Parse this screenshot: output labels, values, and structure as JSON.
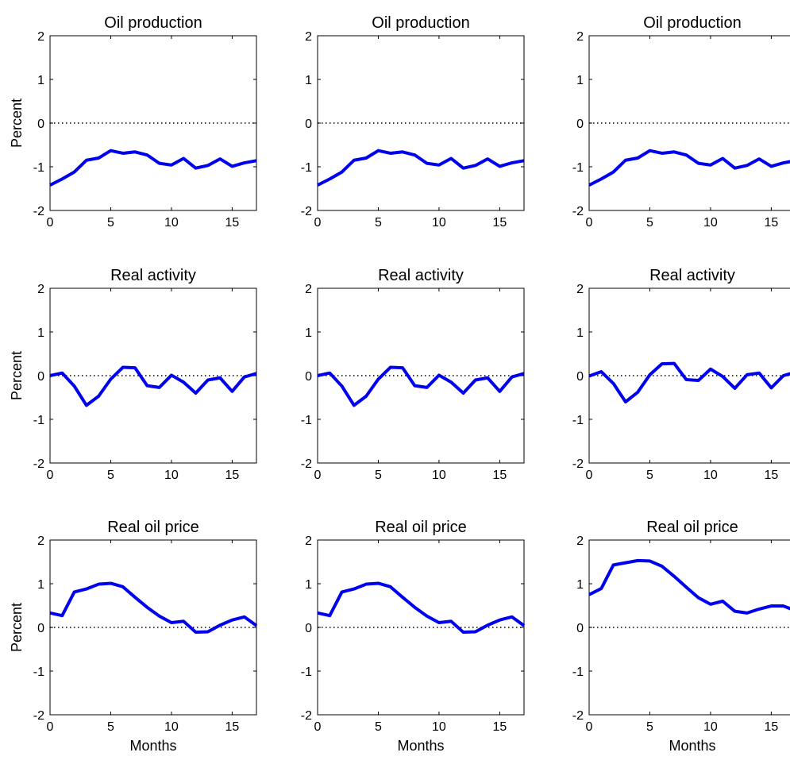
{
  "chart_data": [
    {
      "type": "line",
      "title": "Oil production",
      "ylabel": "Percent",
      "xlabel": "",
      "xlim": [
        0,
        17
      ],
      "ylim": [
        -2,
        2
      ],
      "xticks": [
        "0",
        "5",
        "10",
        "15"
      ],
      "yticks": [
        "-2",
        "-1",
        "0",
        "1",
        "2"
      ],
      "zero_line": "dotted",
      "series": [
        {
          "color": "#0000ee",
          "x": [
            0,
            1,
            2,
            3,
            4,
            5,
            6,
            7,
            8,
            9,
            10,
            11,
            12,
            13,
            14,
            15,
            16,
            17
          ],
          "y": [
            -1.42,
            -1.28,
            -1.12,
            -0.85,
            -0.8,
            -0.63,
            -0.69,
            -0.66,
            -0.73,
            -0.92,
            -0.96,
            -0.81,
            -1.03,
            -0.97,
            -0.82,
            -0.99,
            -0.91,
            -0.86
          ]
        }
      ]
    },
    {
      "type": "line",
      "title": "Oil production",
      "ylabel": "",
      "xlabel": "",
      "xlim": [
        0,
        17
      ],
      "ylim": [
        -2,
        2
      ],
      "xticks": [
        "0",
        "5",
        "10",
        "15"
      ],
      "yticks": [
        "-2",
        "-1",
        "0",
        "1",
        "2"
      ],
      "zero_line": "dotted",
      "series": [
        {
          "color": "#0000ee",
          "x": [
            0,
            1,
            2,
            3,
            4,
            5,
            6,
            7,
            8,
            9,
            10,
            11,
            12,
            13,
            14,
            15,
            16,
            17
          ],
          "y": [
            -1.42,
            -1.28,
            -1.12,
            -0.85,
            -0.8,
            -0.63,
            -0.69,
            -0.66,
            -0.73,
            -0.92,
            -0.96,
            -0.81,
            -1.03,
            -0.97,
            -0.82,
            -0.99,
            -0.91,
            -0.86
          ]
        }
      ]
    },
    {
      "type": "line",
      "title": "Oil production",
      "ylabel": "",
      "xlabel": "",
      "xlim": [
        0,
        17
      ],
      "ylim": [
        -2,
        2
      ],
      "xticks": [
        "0",
        "5",
        "10",
        "15"
      ],
      "yticks": [
        "-2",
        "-1",
        "0",
        "1",
        "2"
      ],
      "zero_line": "dotted",
      "series": [
        {
          "color": "#0000ee",
          "x": [
            0,
            1,
            2,
            3,
            4,
            5,
            6,
            7,
            8,
            9,
            10,
            11,
            12,
            13,
            14,
            15,
            16,
            17
          ],
          "y": [
            -1.42,
            -1.28,
            -1.12,
            -0.85,
            -0.8,
            -0.63,
            -0.69,
            -0.66,
            -0.73,
            -0.92,
            -0.96,
            -0.81,
            -1.03,
            -0.97,
            -0.82,
            -0.99,
            -0.91,
            -0.86
          ]
        }
      ]
    },
    {
      "type": "line",
      "title": "Real activity",
      "ylabel": "Percent",
      "xlabel": "",
      "xlim": [
        0,
        17
      ],
      "ylim": [
        -2,
        2
      ],
      "xticks": [
        "0",
        "5",
        "10",
        "15"
      ],
      "yticks": [
        "-2",
        "-1",
        "0",
        "1",
        "2"
      ],
      "zero_line": "dotted",
      "series": [
        {
          "color": "#0000ee",
          "x": [
            0,
            1,
            2,
            3,
            4,
            5,
            6,
            7,
            8,
            9,
            10,
            11,
            12,
            13,
            14,
            15,
            16,
            17
          ],
          "y": [
            0.0,
            0.06,
            -0.24,
            -0.68,
            -0.47,
            -0.08,
            0.19,
            0.18,
            -0.23,
            -0.27,
            0.01,
            -0.15,
            -0.4,
            -0.1,
            -0.05,
            -0.36,
            -0.03,
            0.05
          ]
        }
      ]
    },
    {
      "type": "line",
      "title": "Real activity",
      "ylabel": "",
      "xlabel": "",
      "xlim": [
        0,
        17
      ],
      "ylim": [
        -2,
        2
      ],
      "xticks": [
        "0",
        "5",
        "10",
        "15"
      ],
      "yticks": [
        "-2",
        "-1",
        "0",
        "1",
        "2"
      ],
      "zero_line": "dotted",
      "series": [
        {
          "color": "#0000ee",
          "x": [
            0,
            1,
            2,
            3,
            4,
            5,
            6,
            7,
            8,
            9,
            10,
            11,
            12,
            13,
            14,
            15,
            16,
            17
          ],
          "y": [
            0.0,
            0.06,
            -0.24,
            -0.68,
            -0.47,
            -0.08,
            0.19,
            0.18,
            -0.23,
            -0.27,
            0.01,
            -0.15,
            -0.4,
            -0.1,
            -0.05,
            -0.36,
            -0.03,
            0.05
          ]
        }
      ]
    },
    {
      "type": "line",
      "title": "Real activity",
      "ylabel": "",
      "xlabel": "",
      "xlim": [
        0,
        17
      ],
      "ylim": [
        -2,
        2
      ],
      "xticks": [
        "0",
        "5",
        "10",
        "15"
      ],
      "yticks": [
        "-2",
        "-1",
        "0",
        "1",
        "2"
      ],
      "zero_line": "dotted",
      "series": [
        {
          "color": "#0000ee",
          "x": [
            0,
            1,
            2,
            3,
            4,
            5,
            6,
            7,
            8,
            9,
            10,
            11,
            12,
            13,
            14,
            15,
            16,
            17
          ],
          "y": [
            -0.01,
            0.09,
            -0.18,
            -0.6,
            -0.38,
            0.02,
            0.27,
            0.28,
            -0.09,
            -0.11,
            0.15,
            -0.02,
            -0.29,
            0.02,
            0.06,
            -0.28,
            0.0,
            0.08
          ]
        }
      ]
    },
    {
      "type": "line",
      "title": "Real oil price",
      "ylabel": "Percent",
      "xlabel": "Months",
      "xlim": [
        0,
        17
      ],
      "ylim": [
        -2,
        2
      ],
      "xticks": [
        "0",
        "5",
        "10",
        "15"
      ],
      "yticks": [
        "-2",
        "-1",
        "0",
        "1",
        "2"
      ],
      "zero_line": "dotted",
      "series": [
        {
          "color": "#0000ee",
          "x": [
            0,
            1,
            2,
            3,
            4,
            5,
            6,
            7,
            8,
            9,
            10,
            11,
            12,
            13,
            14,
            15,
            16,
            17
          ],
          "y": [
            0.33,
            0.27,
            0.81,
            0.88,
            0.99,
            1.01,
            0.93,
            0.69,
            0.46,
            0.26,
            0.11,
            0.14,
            -0.11,
            -0.1,
            0.05,
            0.17,
            0.24,
            0.04
          ]
        }
      ]
    },
    {
      "type": "line",
      "title": "Real oil price",
      "ylabel": "",
      "xlabel": "Months",
      "xlim": [
        0,
        17
      ],
      "ylim": [
        -2,
        2
      ],
      "xticks": [
        "0",
        "5",
        "10",
        "15"
      ],
      "yticks": [
        "-2",
        "-1",
        "0",
        "1",
        "2"
      ],
      "zero_line": "dotted",
      "series": [
        {
          "color": "#0000ee",
          "x": [
            0,
            1,
            2,
            3,
            4,
            5,
            6,
            7,
            8,
            9,
            10,
            11,
            12,
            13,
            14,
            15,
            16,
            17
          ],
          "y": [
            0.33,
            0.27,
            0.81,
            0.88,
            0.99,
            1.01,
            0.93,
            0.69,
            0.46,
            0.26,
            0.11,
            0.14,
            -0.11,
            -0.1,
            0.05,
            0.17,
            0.24,
            0.04
          ]
        }
      ]
    },
    {
      "type": "line",
      "title": "Real oil price",
      "ylabel": "",
      "xlabel": "Months",
      "xlim": [
        0,
        17
      ],
      "ylim": [
        -2,
        2
      ],
      "xticks": [
        "0",
        "5",
        "10",
        "15"
      ],
      "yticks": [
        "-2",
        "-1",
        "0",
        "1",
        "2"
      ],
      "zero_line": "dotted",
      "series": [
        {
          "color": "#0000ee",
          "x": [
            0,
            1,
            2,
            3,
            4,
            5,
            6,
            7,
            8,
            9,
            10,
            11,
            12,
            13,
            14,
            15,
            16,
            17
          ],
          "y": [
            0.75,
            0.89,
            1.43,
            1.48,
            1.53,
            1.52,
            1.4,
            1.17,
            0.92,
            0.68,
            0.53,
            0.6,
            0.37,
            0.33,
            0.42,
            0.49,
            0.49,
            0.38
          ]
        }
      ]
    }
  ]
}
